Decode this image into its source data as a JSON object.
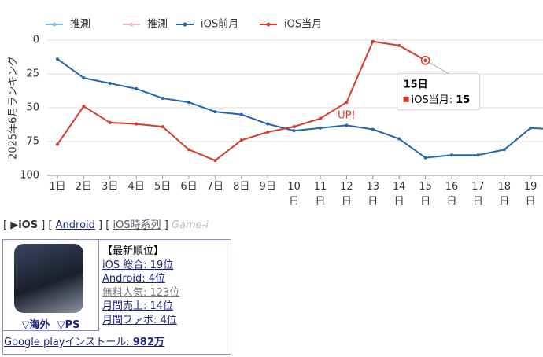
{
  "chart_data": {
    "type": "line",
    "y_label": "2025年6月ランキング",
    "categories": [
      "1日",
      "2日",
      "3日",
      "4日",
      "5日",
      "6日",
      "7日",
      "8日",
      "9日",
      "10日",
      "11日",
      "12日",
      "13日",
      "14日",
      "15日",
      "16日",
      "17日",
      "18日",
      "19日",
      null
    ],
    "series": [
      {
        "name": "推測",
        "color": "#7cc0ee"
      },
      {
        "name": "推測",
        "color": "#f6b6c3"
      },
      {
        "name": "iOS前月",
        "color": "#1f68ad",
        "values": [
          14,
          28,
          32,
          36,
          43,
          46,
          53,
          55,
          62,
          67,
          65,
          63,
          66,
          73,
          87,
          85,
          85,
          81,
          65,
          66
        ]
      },
      {
        "name": "iOS当月",
        "color": "#da3a2c",
        "values": [
          77,
          49,
          61,
          62,
          64,
          81,
          89,
          74,
          68,
          64,
          58,
          46,
          1,
          4,
          15,
          null,
          null,
          null,
          null,
          null
        ]
      }
    ],
    "ylim": [
      0,
      100
    ],
    "y_inverted": true,
    "yticks": [
      0,
      25,
      50,
      75,
      100
    ],
    "grid": true,
    "annotation": {
      "text": "UP!",
      "index": 11,
      "series": 3
    },
    "tooltip": {
      "index": 14,
      "series": 3
    }
  },
  "nav": {
    "items": [
      "▶iOS",
      "Android",
      "iOS時系列",
      "Game-i"
    ]
  },
  "info": {
    "links": [
      "▽海外",
      "▽PS"
    ],
    "heading": "【最新順位】",
    "ranks": [
      "iOS 総合: 19位",
      "Android: 4位",
      "無料人気: 123位",
      "月間売上: 14位",
      "月間ファボ: 4位"
    ],
    "install_label": "Google playインストール:",
    "install_value": "982万"
  }
}
